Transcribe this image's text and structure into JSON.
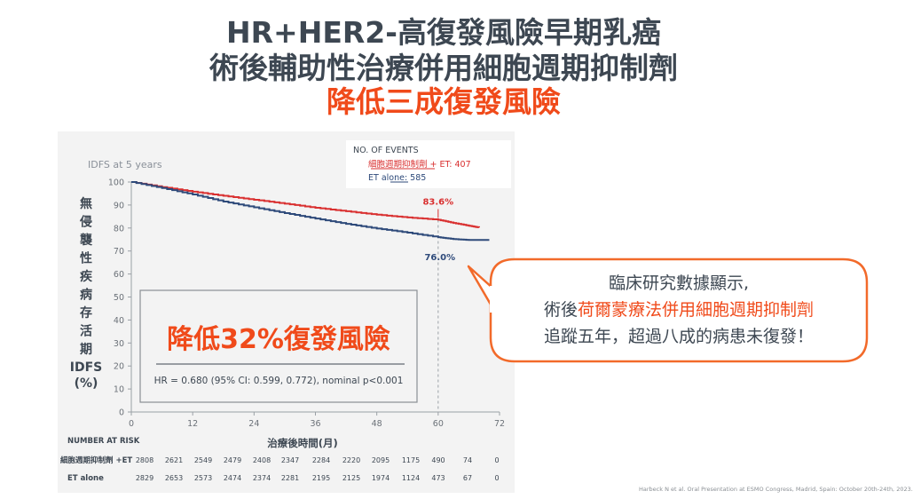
{
  "slide": {
    "title_line1": "HR+HER2-高復發風險早期乳癌",
    "title_line2": "術後輔助性治療併用細胞週期抑制劑",
    "title_line3": "降低三成復發風險",
    "footnote": "Harbeck N et al. Oral Presentation at ESMO Congress, Madrid, Spain: October 20th-24th, 2023."
  },
  "callout": {
    "line1": "臨床研究數據顯示,",
    "line2_prefix": "術後",
    "line2_highlight": "荷爾蒙療法併用細胞週期抑制劑",
    "line3": "追蹤五年，超過八成的病患未復發！"
  },
  "highlight_box": {
    "headline": "降低32%復發風險",
    "hr_text": "HR = 0.680 (95% CI: 0.599, 0.772), nominal p<0.001"
  },
  "events_box": {
    "header": "NO. OF EVENTS",
    "arm1": "細胞週期抑制劑 + ET: 407",
    "arm2": "ET alone: 585"
  },
  "chart_data": {
    "type": "line",
    "subtitle": "IDFS at 5 years",
    "ylabel_chars": [
      "無",
      "侵",
      "襲",
      "性",
      "疾",
      "病",
      "存",
      "活",
      "期"
    ],
    "ylabel_tail": [
      "IDFS",
      "(%)"
    ],
    "xlabel": "治療後時間(月)",
    "xlim": [
      0,
      72
    ],
    "ylim": [
      0,
      100
    ],
    "xticks": [
      0,
      12,
      24,
      36,
      48,
      60,
      72
    ],
    "yticks": [
      0,
      10,
      20,
      30,
      40,
      50,
      60,
      70,
      80,
      90,
      100
    ],
    "series": [
      {
        "name": "細胞週期抑制劑 + ET",
        "color": "#d93030",
        "x": [
          0,
          6,
          12,
          18,
          24,
          30,
          36,
          42,
          48,
          54,
          60,
          63,
          66,
          68
        ],
        "y": [
          100,
          97.8,
          95.8,
          94,
          92.3,
          90.6,
          88.8,
          87.3,
          85.8,
          84.6,
          83.6,
          82.2,
          81,
          80.2
        ]
      },
      {
        "name": "ET alone",
        "color": "#2e4a7a",
        "x": [
          0,
          6,
          12,
          18,
          24,
          30,
          36,
          42,
          48,
          54,
          60,
          63,
          66,
          70
        ],
        "y": [
          100,
          97.4,
          94.6,
          91.5,
          89,
          86.5,
          84.1,
          81.8,
          79.8,
          78,
          76.0,
          75.2,
          74.8,
          74.8
        ]
      }
    ],
    "annotations": [
      {
        "x": 60,
        "y": 83.6,
        "label": "83.6%",
        "color": "#d93030"
      },
      {
        "x": 60,
        "y": 76.0,
        "label": "76.0%",
        "color": "#2e4a7a"
      }
    ],
    "risk_table": {
      "header": "NUMBER AT RISK",
      "rows": [
        {
          "label": "細胞週期抑制劑 +ET",
          "values": [
            "2808",
            "2621",
            "2549",
            "2479",
            "2408",
            "2347",
            "2284",
            "2220",
            "2095",
            "1175",
            "490",
            "74",
            "0"
          ]
        },
        {
          "label": "ET alone",
          "values": [
            "2829",
            "2653",
            "2573",
            "2474",
            "2374",
            "2281",
            "2195",
            "2125",
            "1974",
            "1124",
            "473",
            "67",
            "0"
          ]
        }
      ]
    }
  }
}
